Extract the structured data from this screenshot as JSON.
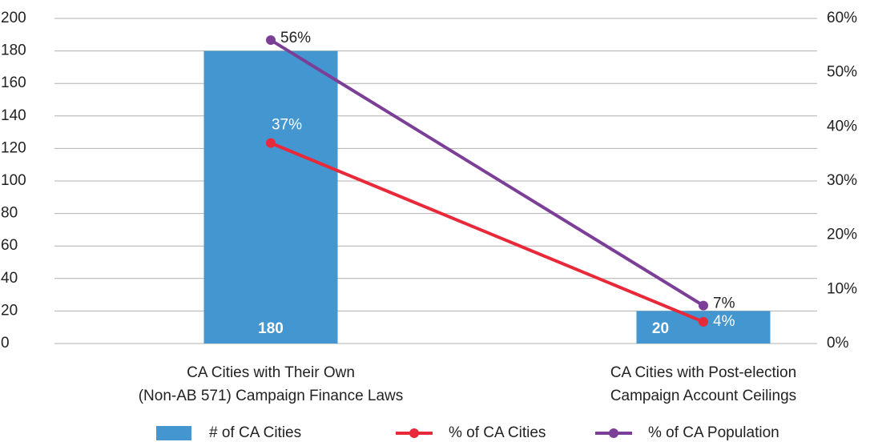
{
  "chart_data": {
    "type": "bar",
    "categories": [
      [
        "CA Cities with Their Own",
        "(Non-AB 571) Campaign Finance Laws"
      ],
      [
        "CA Cities with Post-election",
        "Campaign Account Ceilings"
      ]
    ],
    "series": [
      {
        "name": "# of CA Cities",
        "type": "bar",
        "color": "#4396cf",
        "values": [
          180,
          20
        ]
      },
      {
        "name": "% of CA Cities",
        "type": "line",
        "axis": "y2",
        "color": "#e8293a",
        "values": [
          37,
          4
        ],
        "value_labels": [
          "37%",
          "4%"
        ]
      },
      {
        "name": "% of CA Population",
        "type": "line",
        "axis": "y2",
        "color": "#7b3f98",
        "values": [
          56,
          7
        ],
        "value_labels": [
          "56%",
          "7%"
        ]
      }
    ],
    "ylim": [
      0,
      200
    ],
    "yticks": [
      0,
      20,
      40,
      60,
      80,
      100,
      120,
      140,
      160,
      180,
      200
    ],
    "y2lim": [
      0,
      60
    ],
    "y2ticks": [
      {
        "value": 0,
        "label": "0%"
      },
      {
        "value": 10,
        "label": "10%"
      },
      {
        "value": 20,
        "label": "20%"
      },
      {
        "value": 30,
        "label": "30%"
      },
      {
        "value": 40,
        "label": "40%"
      },
      {
        "value": 50,
        "label": "50%"
      },
      {
        "value": 60,
        "label": "60%"
      }
    ],
    "grid": true,
    "legend": "bottom"
  }
}
